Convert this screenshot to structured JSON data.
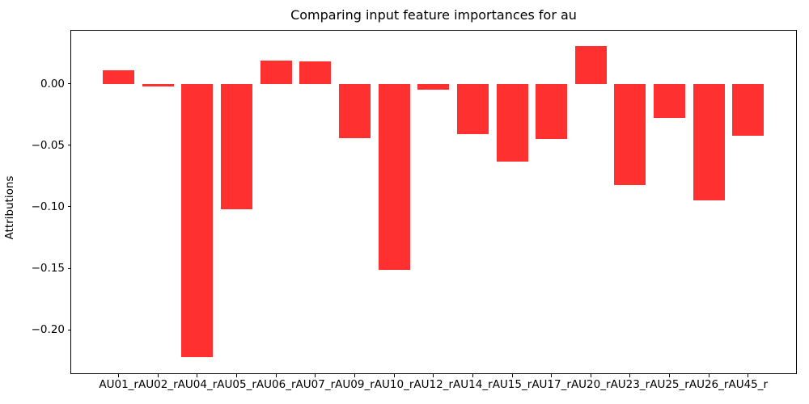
{
  "chart_data": {
    "type": "bar",
    "title": "Comparing input feature importances for au",
    "xlabel": "",
    "ylabel": "Attributions",
    "categories": [
      "AU01_r",
      "AU02_r",
      "AU04_r",
      "AU05_r",
      "AU06_r",
      "AU07_r",
      "AU09_r",
      "AU10_r",
      "AU12_r",
      "AU14_r",
      "AU15_r",
      "AU17_r",
      "AU20_r",
      "AU23_r",
      "AU25_r",
      "AU26_r",
      "AU45_r"
    ],
    "values": [
      0.011,
      -0.002,
      -0.222,
      -0.102,
      0.019,
      0.018,
      -0.044,
      -0.151,
      -0.005,
      -0.041,
      -0.063,
      -0.045,
      0.031,
      -0.082,
      -0.028,
      -0.095,
      -0.042
    ],
    "bar_color": "#ff3030",
    "axis_color": "#000000",
    "background_color": "#ffffff",
    "ylim": [
      -0.2354,
      0.0432
    ],
    "yticks": [
      {
        "value": 0.0,
        "label": "0.00"
      },
      {
        "value": -0.05,
        "label": "−0.05"
      },
      {
        "value": -0.1,
        "label": "−0.10"
      },
      {
        "value": -0.15,
        "label": "−0.15"
      },
      {
        "value": -0.2,
        "label": "−0.20"
      }
    ],
    "grid": false,
    "legend_position": "none"
  }
}
